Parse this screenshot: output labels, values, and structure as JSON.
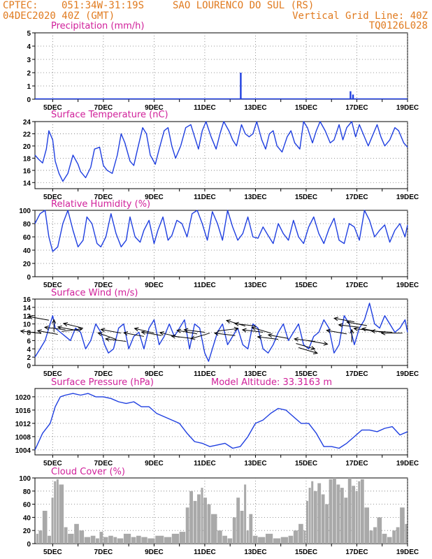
{
  "header": {
    "source": "CPTEC:",
    "coords": "051:34W-31:19S",
    "location": "SAO LOURENCO DO SUL (RS)",
    "run": "04DEC2020 40Z (GMT)",
    "grid_note": "Vertical Grid Line: 40Z",
    "code": "TQ0126L028"
  },
  "colors": {
    "header": "#e07a1e",
    "title": "#d0209a",
    "line": "#1f3fe0",
    "cloud": "#a9a9a9",
    "arrow": "#000000"
  },
  "x_axis": {
    "labels": [
      "5DEC",
      "7DEC",
      "9DEC",
      "11DEC",
      "13DEC",
      "15DEC",
      "17DEC",
      "19DEC"
    ],
    "label_days": [
      5,
      7,
      9,
      11,
      13,
      15,
      17,
      19
    ],
    "range_days": [
      4.3,
      19.0
    ]
  },
  "chart_data": [
    {
      "id": "precip",
      "type": "bar",
      "title": "Precipitation (mm/h)",
      "ylim": [
        0,
        5
      ],
      "yticks": [
        "0",
        "1",
        "2",
        "3",
        "4",
        "5"
      ],
      "x": [
        12.42,
        16.75,
        16.85
      ],
      "values": [
        2.0,
        0.6,
        0.35
      ],
      "baseline_from": 4.3,
      "baseline_to": 19.0
    },
    {
      "id": "temp",
      "type": "line",
      "title": "Surface Temperature (nC)",
      "ylim": [
        13,
        24
      ],
      "yticks": [
        "14",
        "16",
        "18",
        "20",
        "22",
        "24"
      ],
      "x": [
        4.3,
        4.45,
        4.6,
        4.75,
        4.85,
        5.0,
        5.1,
        5.25,
        5.4,
        5.6,
        5.8,
        6.0,
        6.1,
        6.3,
        6.5,
        6.65,
        6.85,
        7.0,
        7.15,
        7.35,
        7.55,
        7.7,
        7.85,
        8.05,
        8.2,
        8.35,
        8.55,
        8.7,
        8.85,
        9.05,
        9.2,
        9.4,
        9.55,
        9.7,
        9.85,
        10.05,
        10.25,
        10.45,
        10.6,
        10.75,
        10.9,
        11.05,
        11.25,
        11.45,
        11.6,
        11.75,
        11.95,
        12.1,
        12.25,
        12.45,
        12.6,
        12.75,
        12.9,
        13.05,
        13.25,
        13.4,
        13.55,
        13.7,
        13.85,
        14.05,
        14.25,
        14.4,
        14.55,
        14.75,
        14.9,
        15.05,
        15.25,
        15.4,
        15.55,
        15.75,
        15.95,
        16.1,
        16.3,
        16.45,
        16.6,
        16.8,
        16.95,
        17.1,
        17.25,
        17.45,
        17.6,
        17.8,
        17.95,
        18.1,
        18.3,
        18.5,
        18.65,
        18.85,
        19.0
      ],
      "values": [
        18.5,
        17.8,
        17.2,
        19.5,
        22.5,
        21.0,
        17.5,
        15.5,
        14.2,
        15.5,
        18.5,
        17.0,
        15.8,
        14.8,
        16.5,
        19.5,
        19.8,
        16.8,
        16.0,
        15.5,
        18.5,
        22.0,
        20.5,
        17.5,
        16.8,
        19.5,
        23.0,
        22.0,
        18.5,
        17.0,
        19.5,
        22.5,
        23.0,
        20.0,
        18.0,
        20.0,
        23.0,
        23.5,
        21.5,
        19.5,
        22.5,
        24.0,
        21.5,
        19.5,
        22.0,
        24.0,
        22.5,
        21.0,
        20.0,
        23.5,
        22.0,
        21.5,
        22.0,
        24.0,
        21.0,
        19.5,
        22.0,
        22.5,
        20.0,
        19.0,
        21.5,
        22.5,
        20.5,
        19.5,
        24.0,
        23.0,
        20.5,
        22.5,
        24.0,
        22.5,
        20.5,
        21.0,
        23.5,
        21.0,
        23.0,
        24.0,
        21.5,
        23.5,
        22.0,
        20.0,
        21.5,
        23.5,
        21.5,
        20.0,
        21.0,
        23.0,
        22.5,
        20.5,
        19.8
      ]
    },
    {
      "id": "rh",
      "type": "line",
      "title": "Relative Humidity (%)",
      "ylim": [
        0,
        100
      ],
      "yticks": [
        "0",
        "20",
        "40",
        "60",
        "80",
        "100"
      ],
      "x": [
        4.3,
        4.5,
        4.7,
        4.85,
        5.0,
        5.2,
        5.4,
        5.6,
        5.8,
        6.0,
        6.2,
        6.35,
        6.55,
        6.75,
        6.9,
        7.1,
        7.3,
        7.5,
        7.7,
        7.9,
        8.05,
        8.25,
        8.45,
        8.6,
        8.8,
        9.0,
        9.15,
        9.35,
        9.55,
        9.7,
        9.9,
        10.1,
        10.3,
        10.5,
        10.7,
        10.9,
        11.1,
        11.3,
        11.5,
        11.7,
        11.9,
        12.1,
        12.3,
        12.5,
        12.7,
        12.9,
        13.1,
        13.3,
        13.5,
        13.7,
        13.9,
        14.1,
        14.3,
        14.5,
        14.7,
        14.9,
        15.1,
        15.3,
        15.5,
        15.7,
        15.9,
        16.1,
        16.3,
        16.5,
        16.7,
        16.9,
        17.1,
        17.3,
        17.5,
        17.7,
        17.9,
        18.1,
        18.3,
        18.5,
        18.7,
        18.9,
        19.0
      ],
      "values": [
        80,
        95,
        100,
        60,
        38,
        45,
        80,
        100,
        70,
        45,
        55,
        90,
        80,
        50,
        45,
        60,
        95,
        65,
        45,
        55,
        90,
        60,
        52,
        70,
        85,
        50,
        70,
        90,
        55,
        62,
        85,
        80,
        60,
        95,
        100,
        80,
        55,
        98,
        80,
        55,
        100,
        75,
        55,
        65,
        90,
        60,
        58,
        75,
        62,
        50,
        80,
        65,
        55,
        85,
        60,
        50,
        75,
        90,
        65,
        50,
        72,
        88,
        55,
        50,
        80,
        75,
        55,
        100,
        85,
        60,
        70,
        78,
        52,
        70,
        80,
        60,
        78
      ]
    },
    {
      "id": "wind",
      "type": "line",
      "title": "Surface Wind (m/s)",
      "ylim": [
        0,
        16
      ],
      "yticks": [
        "0",
        "2",
        "4",
        "6",
        "8",
        "10",
        "12",
        "14",
        "16"
      ],
      "x": [
        4.3,
        4.5,
        4.7,
        4.85,
        5.0,
        5.1,
        5.3,
        5.5,
        5.7,
        5.9,
        6.1,
        6.3,
        6.5,
        6.7,
        6.9,
        7.05,
        7.2,
        7.4,
        7.6,
        7.8,
        8.0,
        8.2,
        8.4,
        8.6,
        8.8,
        9.0,
        9.2,
        9.4,
        9.6,
        9.8,
        10.0,
        10.2,
        10.4,
        10.6,
        10.8,
        11.0,
        11.15,
        11.3,
        11.5,
        11.7,
        11.9,
        12.1,
        12.3,
        12.5,
        12.7,
        12.9,
        13.1,
        13.3,
        13.5,
        13.7,
        13.9,
        14.1,
        14.3,
        14.5,
        14.7,
        14.9,
        15.1,
        15.3,
        15.5,
        15.7,
        15.9,
        16.1,
        16.3,
        16.5,
        16.7,
        16.9,
        17.1,
        17.3,
        17.5,
        17.7,
        17.9,
        18.1,
        18.3,
        18.5,
        18.7,
        18.9,
        19.0
      ],
      "values": [
        2,
        4,
        6,
        9,
        12,
        9,
        8,
        7,
        6,
        9,
        8,
        4,
        6,
        10,
        8,
        5,
        3,
        4,
        9,
        10,
        4,
        7,
        8,
        4,
        9,
        11,
        5,
        7,
        10,
        7,
        9,
        11,
        4,
        10,
        9,
        3,
        1,
        4,
        8,
        10,
        5,
        7,
        9,
        5,
        4,
        10,
        9,
        4,
        3,
        5,
        8,
        10,
        6,
        8,
        10,
        5,
        4,
        7,
        8,
        11,
        9,
        3,
        5,
        12,
        10,
        5,
        9,
        11,
        15,
        10,
        9,
        12,
        10,
        8,
        9,
        11,
        8
      ],
      "arrows": [
        [
          4.55,
          7.7,
          -1,
          -0.2
        ],
        [
          4.85,
          10.9,
          -1,
          -0.3
        ],
        [
          5.05,
          8.0,
          0,
          -0.2
        ],
        [
          5.2,
          7.5,
          -1,
          -0.3
        ],
        [
          5.35,
          8.2,
          1,
          -0.2
        ],
        [
          5.5,
          8.6,
          -1,
          -0.2
        ],
        [
          6.0,
          8.4,
          -1,
          -0.3
        ],
        [
          6.2,
          9.0,
          -1,
          -0.4
        ],
        [
          7.7,
          7.8,
          -1,
          -0.3
        ],
        [
          7.5,
          6.3,
          -1,
          -0.6
        ],
        [
          7.9,
          5.8,
          -1,
          -0.2
        ],
        [
          8.6,
          7.0,
          -1,
          -0.3
        ],
        [
          9.0,
          7.8,
          -1,
          -0.4
        ],
        [
          9.3,
          7.2,
          -1,
          -0.3
        ],
        [
          10.0,
          6.8,
          -1,
          -0.4
        ],
        [
          10.5,
          6.5,
          -1,
          -0.2
        ],
        [
          10.7,
          7.6,
          -1,
          -0.3
        ],
        [
          11.0,
          8.0,
          -1,
          -0.2
        ],
        [
          11.2,
          7.8,
          -1,
          0.5
        ],
        [
          11.5,
          8.3,
          1,
          -0.2
        ],
        [
          12.2,
          7.2,
          -1,
          -0.2
        ],
        [
          12.6,
          9.5,
          -1,
          -0.5
        ],
        [
          13.0,
          9.5,
          -1,
          -0.2
        ],
        [
          13.3,
          8.0,
          -1,
          -0.2
        ],
        [
          13.6,
          7.8,
          -1,
          -0.5
        ],
        [
          13.9,
          6.3,
          -1,
          -0.2
        ],
        [
          14.3,
          6.5,
          -1,
          -0.3
        ],
        [
          14.6,
          5.3,
          1,
          0.5
        ],
        [
          14.7,
          4.3,
          1,
          0.5
        ],
        [
          15.05,
          6.0,
          1,
          0.3
        ],
        [
          15.35,
          5.8,
          -1,
          -0.2
        ],
        [
          16.6,
          7.6,
          -1,
          -0.3
        ],
        [
          16.8,
          5.6,
          0,
          -1
        ],
        [
          16.9,
          10.5,
          -1,
          -0.3
        ],
        [
          17.1,
          9.2,
          -1,
          -0.2
        ],
        [
          17.4,
          9.6,
          -1,
          -0.3
        ],
        [
          17.7,
          8.3,
          -1,
          -0.2
        ],
        [
          18.0,
          8.0,
          -1,
          -0.3
        ],
        [
          18.4,
          8.0,
          -1,
          -0.1
        ],
        [
          18.8,
          7.8,
          -1,
          0
        ]
      ]
    },
    {
      "id": "pressure",
      "type": "line",
      "title": "Surface Pressure (hPa)",
      "annotation": "Model Altitude: 33.3163 m",
      "ylim": [
        1002.5,
        1022.5
      ],
      "yticks": [
        "1004",
        "1008",
        "1012",
        "1016",
        "1020"
      ],
      "x": [
        4.3,
        4.6,
        4.9,
        5.1,
        5.3,
        5.5,
        5.8,
        6.1,
        6.4,
        6.7,
        7.0,
        7.3,
        7.6,
        7.9,
        8.2,
        8.5,
        8.8,
        9.1,
        9.4,
        9.7,
        10.0,
        10.3,
        10.6,
        10.9,
        11.2,
        11.5,
        11.8,
        12.1,
        12.4,
        12.7,
        13.0,
        13.3,
        13.6,
        13.9,
        14.2,
        14.5,
        14.8,
        15.1,
        15.4,
        15.7,
        16.0,
        16.3,
        16.6,
        16.9,
        17.2,
        17.5,
        17.8,
        18.1,
        18.4,
        18.7,
        19.0
      ],
      "values": [
        1004,
        1009,
        1012,
        1017,
        1020,
        1020.5,
        1021,
        1020.5,
        1021,
        1020,
        1020,
        1019.5,
        1018.5,
        1018,
        1018.5,
        1017,
        1017,
        1015,
        1014,
        1013,
        1012,
        1009,
        1006.5,
        1006,
        1005,
        1005.5,
        1006,
        1004.5,
        1005,
        1008,
        1012,
        1013,
        1015,
        1016.5,
        1016,
        1014,
        1012,
        1012,
        1009,
        1005,
        1005,
        1004.5,
        1006,
        1008,
        1010,
        1010,
        1009.5,
        1010.5,
        1011,
        1008.5,
        1009.5
      ]
    },
    {
      "id": "cloud",
      "type": "bar",
      "title": "Cloud Cover (%)",
      "ylim": [
        0,
        100
      ],
      "yticks": [
        "0",
        "20",
        "40",
        "60",
        "80",
        "100"
      ],
      "x": [
        4.35,
        4.45,
        4.6,
        4.8,
        4.95,
        5.05,
        5.15,
        5.25,
        5.45,
        5.6,
        5.85,
        6.05,
        6.25,
        6.5,
        6.7,
        6.85,
        7.0,
        7.2,
        7.4,
        7.55,
        7.8,
        8.1,
        8.3,
        8.5,
        8.75,
        9.05,
        9.4,
        9.7,
        10.0,
        10.25,
        10.4,
        10.55,
        10.7,
        10.85,
        10.95,
        11.1,
        11.25,
        11.5,
        11.7,
        11.9,
        12.1,
        12.25,
        12.4,
        12.55,
        12.65,
        12.75,
        12.9,
        13.1,
        13.4,
        13.7,
        14.0,
        14.3,
        14.5,
        14.7,
        14.9,
        15.0,
        15.1,
        15.2,
        15.3,
        15.45,
        15.6,
        15.75,
        15.9,
        16.05,
        16.2,
        16.35,
        16.5,
        16.65,
        16.8,
        16.95,
        17.05,
        17.15,
        17.3,
        17.5,
        17.65,
        17.8,
        18.0,
        18.2,
        18.4,
        18.55,
        18.7,
        18.9
      ],
      "values": [
        15,
        20,
        50,
        12,
        70,
        95,
        98,
        90,
        25,
        15,
        30,
        20,
        10,
        12,
        8,
        18,
        10,
        12,
        10,
        8,
        15,
        10,
        12,
        10,
        8,
        12,
        10,
        15,
        18,
        55,
        80,
        65,
        75,
        85,
        70,
        60,
        45,
        20,
        12,
        8,
        40,
        70,
        50,
        90,
        20,
        45,
        12,
        10,
        15,
        8,
        10,
        12,
        20,
        30,
        20,
        65,
        85,
        95,
        80,
        92,
        75,
        60,
        98,
        100,
        90,
        85,
        70,
        100,
        88,
        80,
        95,
        98,
        55,
        20,
        25,
        40,
        15,
        10,
        20,
        25,
        55,
        30
      ]
    }
  ]
}
